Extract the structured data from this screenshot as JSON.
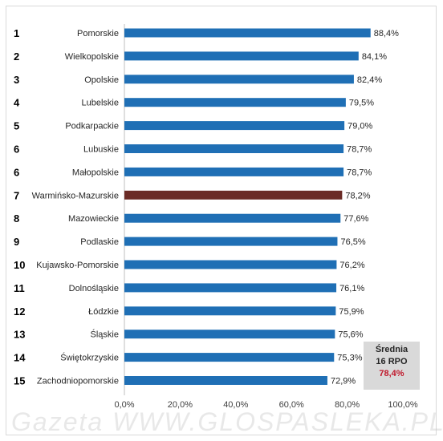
{
  "chart_data": {
    "type": "bar",
    "orientation": "horizontal",
    "ranks": [
      "1",
      "2",
      "3",
      "4",
      "5",
      "6",
      "6",
      "7",
      "8",
      "9",
      "10",
      "11",
      "12",
      "13",
      "14",
      "15"
    ],
    "categories": [
      "Pomorskie",
      "Wielkopolskie",
      "Opolskie",
      "Lubelskie",
      "Podkarpackie",
      "Lubuskie",
      "Małopolskie",
      "Warmińsko-Mazurskie",
      "Mazowieckie",
      "Podlaskie",
      "Kujawsko-Pomorskie",
      "Dolnośląskie",
      "Łódzkie",
      "Śląskie",
      "Świętokrzyskie",
      "Zachodniopomorskie"
    ],
    "values": [
      88.4,
      84.1,
      82.4,
      79.5,
      79.0,
      78.7,
      78.7,
      78.2,
      77.6,
      76.5,
      76.2,
      76.1,
      75.9,
      75.6,
      75.3,
      72.9
    ],
    "value_labels": [
      "88,4%",
      "84,1%",
      "82,4%",
      "79,5%",
      "79,0%",
      "78,7%",
      "78,7%",
      "78,2%",
      "77,6%",
      "76,5%",
      "76,2%",
      "76,1%",
      "75,9%",
      "75,6%",
      "75,3%",
      "72,9%"
    ],
    "highlight_category": "Warmińsko-Mazurskie",
    "xlim": [
      0,
      100
    ],
    "x_ticks": [
      0,
      20,
      40,
      60,
      80,
      100
    ],
    "x_tick_labels": [
      "0,0%",
      "20,0%",
      "40,0%",
      "60,0%",
      "80,0%",
      "100,0%"
    ],
    "grid": false,
    "legend": "none",
    "colors": {
      "bar": "#1f6fb5",
      "highlight": "#6b2b26",
      "average_value": "#c0182b"
    }
  },
  "average_box": {
    "title_line1": "Średnia",
    "title_line2": "16 RPO",
    "value": "78,4%"
  },
  "watermark": "Gazeta WWW.GLOSPASLEKA.PL"
}
